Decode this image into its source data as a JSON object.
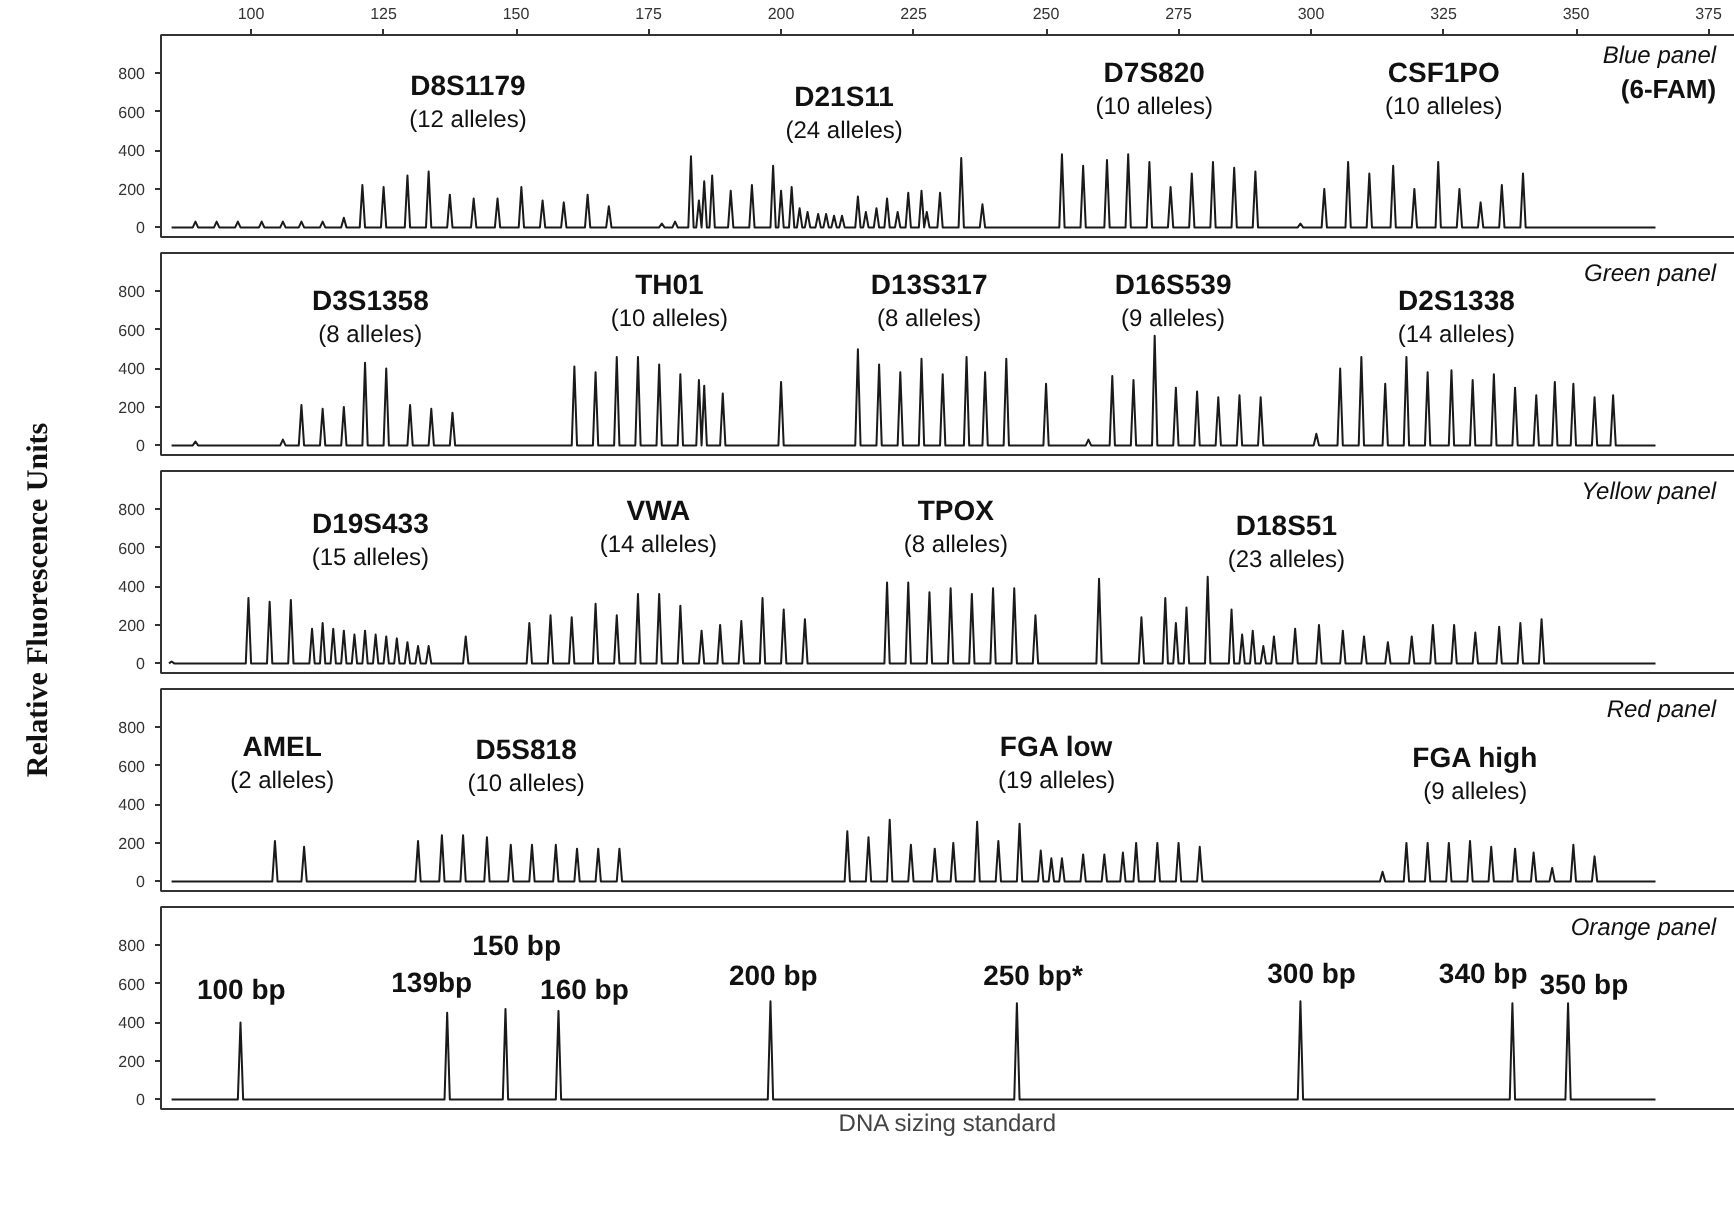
{
  "chart_data": [
    {
      "type": "line",
      "xlim": [
        83,
        380
      ],
      "ylim": [
        -50,
        1000
      ],
      "xticks": [
        100,
        125,
        150,
        175,
        200,
        225,
        250,
        275,
        300,
        325,
        350,
        375
      ],
      "yticks": [
        0,
        200,
        400,
        600,
        800
      ],
      "annotations": [
        "Blue panel\n(6-FAM)",
        "D8S1179\n(12 alleles)",
        "D21S11\n(24 alleles)",
        "D7S820\n(10 alleles)",
        "CSF1PO\n(10 alleles)"
      ],
      "series": [
        {
          "color": "#1a1a1a",
          "x": [
            85,
            89,
            89.5,
            90,
            93,
            93.5,
            94,
            97,
            97.5,
            98,
            101.5,
            102,
            102.5,
            105.5,
            106,
            106.5,
            109,
            109.5,
            110,
            113,
            113.5,
            114,
            117,
            117.5,
            118,
            120.5,
            121,
            121.5,
            124.5,
            125,
            125.5,
            129,
            129.5,
            130,
            133,
            133.5,
            134,
            137,
            137.5,
            138,
            141.5,
            142,
            142.5,
            146,
            146.5,
            147,
            150.5,
            151,
            151.5,
            154.5,
            155,
            155.5,
            158.5,
            159,
            159.5,
            163,
            163.5,
            164,
            167,
            167.5,
            168,
            177,
            177.5,
            178,
            179.5,
            180,
            180.5,
            182.5,
            183,
            183.5,
            184,
            184.5,
            185,
            185,
            185.5,
            186,
            186.5,
            187,
            187.5,
            190,
            190.5,
            191,
            194,
            194.5,
            195,
            198,
            198.5,
            199,
            199.5,
            200,
            200.5,
            201.5,
            202,
            202.5,
            203,
            203.5,
            204,
            204.5,
            205,
            205.5,
            206.5,
            207,
            207.5,
            208,
            208.5,
            209,
            209.5,
            210,
            210.5,
            211,
            211.5,
            212,
            214,
            214.5,
            215,
            215.5,
            216,
            216.5,
            217.5,
            218,
            218.5,
            219.5,
            220,
            220.5,
            221.5,
            222,
            222.5,
            223.5,
            224,
            224.5,
            226,
            226.5,
            227,
            227,
            227.5,
            228,
            229.5,
            230,
            230.5,
            233.5,
            234,
            234.5,
            237.5,
            238,
            238.5,
            252.5,
            253,
            253.5,
            256.5,
            257,
            257.5,
            261,
            261.5,
            262,
            265,
            265.5,
            266,
            269,
            269.5,
            270,
            273,
            273.5,
            274,
            277,
            277.5,
            278,
            281,
            281.5,
            282,
            285,
            285.5,
            286,
            289,
            289.5,
            290,
            297.5,
            298,
            298.5,
            302,
            302.5,
            303,
            306.5,
            307,
            307.5,
            310.5,
            311,
            311.5,
            315,
            315.5,
            316,
            319,
            319.5,
            320,
            323.5,
            324,
            324.5,
            327.5,
            328,
            328.5,
            331.5,
            332,
            332.5,
            335.5,
            336,
            336.5,
            339.5,
            340,
            340.5,
            365
          ],
          "values": [
            0,
            0,
            30,
            0,
            0,
            30,
            0,
            0,
            30,
            0,
            0,
            30,
            0,
            0,
            30,
            0,
            0,
            30,
            0,
            0,
            30,
            0,
            0,
            50,
            0,
            0,
            220,
            0,
            0,
            210,
            0,
            0,
            270,
            0,
            0,
            290,
            0,
            0,
            170,
            0,
            0,
            150,
            0,
            0,
            150,
            0,
            0,
            210,
            0,
            0,
            140,
            0,
            0,
            130,
            0,
            0,
            170,
            0,
            0,
            110,
            0,
            0,
            20,
            0,
            0,
            30,
            0,
            0,
            370,
            0,
            0,
            140,
            0,
            0,
            240,
            0,
            0,
            270,
            0,
            0,
            190,
            0,
            0,
            220,
            0,
            0,
            320,
            0,
            0,
            190,
            0,
            0,
            210,
            0,
            0,
            100,
            0,
            0,
            80,
            0,
            0,
            70,
            0,
            0,
            70,
            0,
            0,
            60,
            0,
            0,
            60,
            0,
            0,
            160,
            0,
            0,
            80,
            0,
            0,
            100,
            0,
            0,
            150,
            0,
            0,
            80,
            0,
            0,
            180,
            0,
            0,
            190,
            0,
            0,
            80,
            0,
            0,
            180,
            0,
            0,
            360,
            0,
            0,
            120,
            0,
            0,
            380,
            0,
            0,
            320,
            0,
            0,
            350,
            0,
            0,
            380,
            0,
            0,
            340,
            0,
            0,
            210,
            0,
            0,
            280,
            0,
            0,
            340,
            0,
            0,
            310,
            0,
            0,
            290,
            0,
            0,
            20,
            0,
            0,
            200,
            0,
            0,
            340,
            0,
            0,
            280,
            0,
            0,
            320,
            0,
            0,
            200,
            0,
            0,
            340,
            0,
            0,
            200,
            0,
            0,
            130,
            0,
            0,
            220,
            0,
            0,
            280,
            0,
            0
          ]
        }
      ]
    },
    {
      "type": "line",
      "xlim": [
        83,
        380
      ],
      "ylim": [
        -50,
        1000
      ],
      "yticks": [
        0,
        200,
        400,
        600,
        800
      ],
      "tick_labels": "y",
      "annotations": [
        "Green panel",
        "D3S1358\n(8 alleles)",
        "TH01\n(10 alleles)",
        "D13S317\n(8 alleles)",
        "D16S539\n(9 alleles)",
        "D2S1338\n(14 alleles)"
      ],
      "series": [
        {
          "color": "#1a1a1a",
          "x": [
            85,
            89,
            89.5,
            90,
            105.5,
            106,
            106.5,
            109,
            109.5,
            110,
            113,
            113.5,
            114,
            117,
            117.5,
            118,
            121,
            121.5,
            122,
            125,
            125.5,
            126,
            129.5,
            130,
            130.5,
            133.5,
            134,
            134.5,
            137.5,
            138,
            138.5,
            160.5,
            161,
            161.5,
            164.5,
            165,
            165.5,
            168.5,
            169,
            169.5,
            172.5,
            173,
            173.5,
            176.5,
            177,
            177.5,
            180.5,
            181,
            181.5,
            184,
            184.5,
            185,
            185,
            185.5,
            186,
            188.5,
            189,
            189.5,
            199.5,
            200,
            200.5,
            214,
            214.5,
            215,
            218,
            218.5,
            219,
            222,
            222.5,
            223,
            226,
            226.5,
            227,
            230,
            230.5,
            231,
            234.5,
            235,
            235.5,
            238,
            238.5,
            239,
            242,
            242.5,
            243,
            249.5,
            250,
            250.5,
            257.5,
            258,
            258.5,
            262,
            262.5,
            263,
            266,
            266.5,
            267,
            270,
            270.5,
            271,
            274,
            274.5,
            275,
            278,
            278.5,
            279,
            282,
            282.5,
            283,
            286,
            286.5,
            287,
            290,
            290.5,
            291,
            300.5,
            301,
            301.5,
            305,
            305.5,
            306,
            309,
            309.5,
            310,
            313.5,
            314,
            314.5,
            317.5,
            318,
            318.5,
            321.5,
            322,
            322.5,
            326,
            326.5,
            327,
            330,
            330.5,
            331,
            334,
            334.5,
            335,
            338,
            338.5,
            339,
            342,
            342.5,
            343,
            345.5,
            346,
            346.5,
            349,
            349.5,
            350,
            353,
            353.5,
            354,
            356.5,
            357,
            357.5,
            365
          ],
          "values": [
            0,
            0,
            20,
            0,
            0,
            30,
            0,
            0,
            210,
            0,
            0,
            190,
            0,
            0,
            200,
            0,
            0,
            430,
            0,
            0,
            400,
            0,
            0,
            210,
            0,
            0,
            190,
            0,
            0,
            170,
            0,
            0,
            410,
            0,
            0,
            380,
            0,
            0,
            460,
            0,
            0,
            460,
            0,
            0,
            420,
            0,
            0,
            370,
            0,
            0,
            340,
            0,
            0,
            310,
            0,
            0,
            270,
            0,
            0,
            330,
            0,
            0,
            500,
            0,
            0,
            420,
            0,
            0,
            380,
            0,
            0,
            450,
            0,
            0,
            370,
            0,
            0,
            460,
            0,
            0,
            380,
            0,
            0,
            450,
            0,
            0,
            320,
            0,
            0,
            30,
            0,
            0,
            360,
            0,
            0,
            340,
            0,
            0,
            570,
            0,
            0,
            300,
            0,
            0,
            280,
            0,
            0,
            250,
            0,
            0,
            260,
            0,
            0,
            250,
            0,
            0,
            60,
            0,
            0,
            400,
            0,
            0,
            460,
            0,
            0,
            320,
            0,
            0,
            460,
            0,
            0,
            380,
            0,
            0,
            390,
            0,
            0,
            340,
            0,
            0,
            370,
            0,
            0,
            300,
            0,
            0,
            260,
            0,
            0,
            330,
            0,
            0,
            320,
            0,
            0,
            250,
            0,
            0,
            260,
            0,
            0
          ]
        }
      ]
    },
    {
      "type": "line",
      "xlim": [
        83,
        380
      ],
      "ylim": [
        -50,
        1000
      ],
      "yticks": [
        0,
        200,
        400,
        600,
        800
      ],
      "tick_labels": "y",
      "ylabel": "Relative Fluorescence Units",
      "annotations": [
        "Yellow panel",
        "D19S433\n(15 alleles)",
        "VWA\n(14 alleles)",
        "TPOX\n(8 alleles)",
        "D18S51\n(23 alleles)"
      ],
      "series": [
        {
          "color": "#1a1a1a",
          "x": [
            84.5,
            85,
            85.5,
            99,
            99.5,
            100,
            103,
            103.5,
            104,
            107,
            107.5,
            108,
            111,
            111.5,
            112,
            113,
            113.5,
            114,
            115,
            115.5,
            116,
            117,
            117.5,
            118,
            119,
            119.5,
            120,
            121,
            121.5,
            122,
            123,
            123.5,
            124,
            125,
            125.5,
            126,
            127,
            127.5,
            128,
            129,
            129.5,
            130,
            131,
            131.5,
            132,
            133,
            133.5,
            134,
            140,
            140.5,
            141,
            152,
            152.5,
            153,
            156,
            156.5,
            157,
            160,
            160.5,
            161,
            164.5,
            165,
            165.5,
            168.5,
            169,
            169.5,
            172.5,
            173,
            173.5,
            176.5,
            177,
            177.5,
            180.5,
            181,
            181.5,
            184.5,
            185,
            185.5,
            188,
            188.5,
            189,
            192,
            192.5,
            193,
            196,
            196.5,
            197,
            200,
            200.5,
            201,
            204,
            204.5,
            205,
            219.5,
            220,
            220.5,
            223.5,
            224,
            224.5,
            227.5,
            228,
            228.5,
            231.5,
            232,
            232.5,
            235.5,
            236,
            236.5,
            239.5,
            240,
            240.5,
            243.5,
            244,
            244.5,
            247.5,
            248,
            248.5,
            259.5,
            260,
            260.5,
            267.5,
            268,
            268.5,
            272,
            272.5,
            273,
            274,
            274.5,
            275,
            276,
            276.5,
            277,
            280,
            280.5,
            281,
            284.5,
            285,
            285.5,
            286.5,
            287,
            287.5,
            288.5,
            289,
            289.5,
            290.5,
            291,
            291.5,
            292.5,
            293,
            293.5,
            296.5,
            297,
            297.5,
            301,
            301.5,
            302,
            305.5,
            306,
            306.5,
            309.5,
            310,
            310.5,
            314,
            314.5,
            315,
            318.5,
            319,
            319.5,
            322.5,
            323,
            323.5,
            326.5,
            327,
            327.5,
            330.5,
            331,
            331.5,
            335,
            335.5,
            336,
            339,
            339.5,
            340,
            343,
            343.5,
            344,
            365
          ],
          "values": [
            0,
            10,
            0,
            0,
            340,
            0,
            0,
            320,
            0,
            0,
            330,
            0,
            0,
            180,
            0,
            0,
            210,
            0,
            0,
            180,
            0,
            0,
            170,
            0,
            0,
            150,
            0,
            0,
            170,
            0,
            0,
            150,
            0,
            0,
            140,
            0,
            0,
            130,
            0,
            0,
            110,
            0,
            0,
            90,
            0,
            0,
            90,
            0,
            0,
            140,
            0,
            0,
            210,
            0,
            0,
            250,
            0,
            0,
            240,
            0,
            0,
            310,
            0,
            0,
            250,
            0,
            0,
            360,
            0,
            0,
            360,
            0,
            0,
            300,
            0,
            0,
            170,
            0,
            0,
            200,
            0,
            0,
            220,
            0,
            0,
            340,
            0,
            0,
            280,
            0,
            0,
            230,
            0,
            0,
            420,
            0,
            0,
            420,
            0,
            0,
            370,
            0,
            0,
            390,
            0,
            0,
            360,
            0,
            0,
            390,
            0,
            0,
            390,
            0,
            0,
            250,
            0,
            0,
            440,
            0,
            0,
            240,
            0,
            0,
            340,
            0,
            0,
            210,
            0,
            0,
            290,
            0,
            0,
            450,
            0,
            0,
            280,
            0,
            0,
            150,
            0,
            0,
            170,
            0,
            0,
            90,
            0,
            0,
            140,
            0,
            0,
            180,
            0,
            0,
            200,
            0,
            0,
            170,
            0,
            0,
            140,
            0,
            0,
            110,
            0,
            0,
            140,
            0,
            0,
            200,
            0,
            0,
            200,
            0,
            0,
            160,
            0,
            0,
            190,
            0,
            0,
            210,
            0,
            0,
            230,
            0,
            0
          ]
        }
      ]
    },
    {
      "type": "line",
      "xlim": [
        83,
        380
      ],
      "ylim": [
        -50,
        1000
      ],
      "yticks": [
        0,
        200,
        400,
        600,
        800
      ],
      "tick_labels": "y",
      "annotations": [
        "Red panel",
        "AMEL\n(2 alleles)",
        "D5S818\n(10 alleles)",
        "FGA low\n(19 alleles)",
        "FGA high\n(9 alleles)"
      ],
      "series": [
        {
          "color": "#1a1a1a",
          "x": [
            85,
            104,
            104.5,
            105,
            109.5,
            110,
            110.5,
            131,
            131.5,
            132,
            135.5,
            136,
            136.5,
            139.5,
            140,
            140.5,
            144,
            144.5,
            145,
            148.5,
            149,
            149.5,
            152.5,
            153,
            153.5,
            157,
            157.5,
            158,
            161,
            161.5,
            162,
            165,
            165.5,
            166,
            169,
            169.5,
            170,
            212,
            212.5,
            213,
            216,
            216.5,
            217,
            220,
            220.5,
            221,
            224,
            224.5,
            225,
            228.5,
            229,
            229.5,
            232,
            232.5,
            233,
            236.5,
            237,
            237.5,
            240.5,
            241,
            241.5,
            244.5,
            245,
            245.5,
            248.5,
            249,
            249.5,
            250.5,
            251,
            251.5,
            252.5,
            253,
            253.5,
            256.5,
            257,
            257.5,
            260.5,
            261,
            261.5,
            264,
            264.5,
            265,
            266.5,
            267,
            267.5,
            270.5,
            271,
            271.5,
            274.5,
            275,
            275.5,
            278.5,
            279,
            279.5,
            313,
            313.5,
            314,
            317.5,
            318,
            318.5,
            321.5,
            322,
            322.5,
            325.5,
            326,
            326.5,
            329.5,
            330,
            330.5,
            333.5,
            334,
            334.5,
            338,
            338.5,
            339,
            341.5,
            342,
            342.5,
            345,
            345.5,
            346,
            349,
            349.5,
            350,
            353,
            353.5,
            354,
            365
          ],
          "values": [
            0,
            0,
            210,
            0,
            0,
            180,
            0,
            0,
            210,
            0,
            0,
            240,
            0,
            0,
            240,
            0,
            0,
            230,
            0,
            0,
            190,
            0,
            0,
            190,
            0,
            0,
            190,
            0,
            0,
            170,
            0,
            0,
            170,
            0,
            0,
            170,
            0,
            0,
            260,
            0,
            0,
            230,
            0,
            0,
            320,
            0,
            0,
            190,
            0,
            0,
            170,
            0,
            0,
            200,
            0,
            0,
            310,
            0,
            0,
            210,
            0,
            0,
            300,
            0,
            0,
            160,
            0,
            0,
            120,
            0,
            0,
            120,
            0,
            0,
            140,
            0,
            0,
            140,
            0,
            0,
            150,
            0,
            0,
            200,
            0,
            0,
            200,
            0,
            0,
            200,
            0,
            0,
            180,
            0,
            0,
            50,
            0,
            0,
            200,
            0,
            0,
            200,
            0,
            0,
            200,
            0,
            0,
            210,
            0,
            0,
            180,
            0,
            0,
            170,
            0,
            0,
            150,
            0,
            0,
            70,
            0,
            0,
            190,
            0,
            0,
            130,
            0,
            0
          ]
        }
      ]
    },
    {
      "type": "line",
      "xlim": [
        83,
        380
      ],
      "ylim": [
        -50,
        1000
      ],
      "yticks": [
        0,
        200,
        400,
        600,
        800
      ],
      "tick_labels": "y",
      "xlabel": "DNA sizing standard",
      "annotations": [
        "Orange panel",
        "100 bp",
        "139bp",
        "150 bp",
        "160 bp",
        "200 bp",
        "250 bp*",
        "300 bp",
        "340 bp",
        "350 bp"
      ],
      "series": [
        {
          "color": "#1a1a1a",
          "x": [
            85,
            97.5,
            98,
            98.5,
            136.5,
            137,
            137.5,
            147.5,
            148,
            148.5,
            157.5,
            158,
            158.5,
            197.5,
            198,
            198.5,
            244,
            244.5,
            245,
            297.5,
            298,
            298.5,
            337.5,
            338,
            338.5,
            348,
            348.5,
            349,
            365
          ],
          "values": [
            0,
            0,
            400,
            0,
            0,
            450,
            0,
            0,
            470,
            0,
            0,
            460,
            0,
            0,
            510,
            0,
            0,
            500,
            0,
            0,
            510,
            0,
            0,
            500,
            0,
            0,
            500,
            0,
            0
          ]
        }
      ]
    }
  ]
}
